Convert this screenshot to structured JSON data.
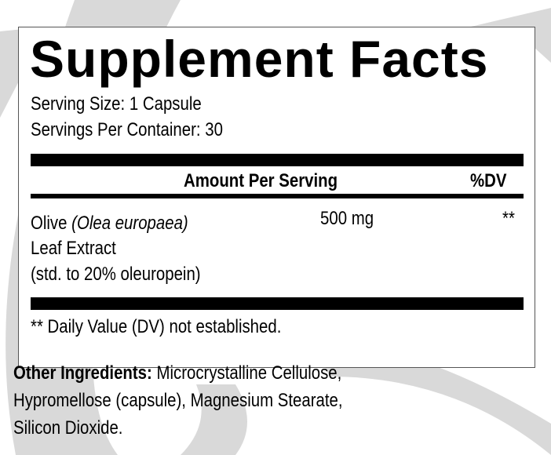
{
  "label": {
    "title": "Supplement Facts",
    "serving_size": "Serving Size: 1 Capsule",
    "servings_per_container": "Servings Per Container: 30",
    "header": {
      "amount": "Amount Per Serving",
      "dv": "%DV"
    },
    "ingredients": [
      {
        "name_prefix": "Olive ",
        "latin": "(Olea europaea)",
        "line2": "Leaf Extract",
        "line3": "(std. to 20% oleuropein)",
        "amount": "500 mg",
        "dv": "**"
      }
    ],
    "footnote": "** Daily Value (DV) not established."
  },
  "other_ingredients": {
    "label": "Other Ingredients:",
    "line1": " Microcrystalline Cellulose,",
    "line2": "Hypromellose (capsule), Magnesium Stearate,",
    "line3": "Silicon Dioxide."
  },
  "colors": {
    "background_swoosh": "#d9d9d9",
    "text": "#000000"
  }
}
